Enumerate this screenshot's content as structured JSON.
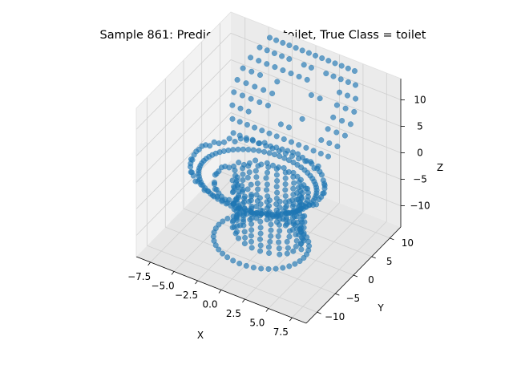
{
  "chart_data": {
    "type": "scatter",
    "projection": "3d",
    "title": "Sample 861: Predicted Class = toilet, True Class = toilet",
    "xlabel": "X",
    "ylabel": "Y",
    "zlabel": "Z",
    "xlim": [
      -9,
      9
    ],
    "ylim": [
      -13,
      13
    ],
    "zlim": [
      -14,
      14
    ],
    "xticks": [
      -7.5,
      -5.0,
      -2.5,
      0.0,
      2.5,
      5.0,
      7.5
    ],
    "xtick_labels": [
      "−7.5",
      "−5.0",
      "−2.5",
      "0.0",
      "2.5",
      "5.0",
      "7.5"
    ],
    "yticks": [
      -10,
      -5,
      0,
      5,
      10
    ],
    "ytick_labels": [
      "−10",
      "−5",
      "0",
      "5",
      "10"
    ],
    "zticks": [
      -10,
      -5,
      0,
      5,
      10
    ],
    "ztick_labels": [
      "−10",
      "−5",
      "0",
      "5",
      "10"
    ],
    "grid": true,
    "point_color": "#1f77b4",
    "series": [
      {
        "points_note": "toilet point cloud (x, y, z)",
        "bowl_rim": {
          "center": [
            0,
            -3,
            0
          ],
          "rx": 6.5,
          "ry": 7.5,
          "z": 0
        },
        "bowl_inner": {
          "center": [
            0,
            -2,
            -3
          ],
          "rx": 4.5,
          "ry": 5.5,
          "z": -3
        },
        "seat_lid": {
          "x_range": [
            -6,
            6
          ],
          "y_range": [
            2,
            12
          ],
          "z_range": [
            2,
            13
          ]
        },
        "pedestal": {
          "center": [
            0,
            0,
            -9
          ],
          "rx": 3.0,
          "ry": 3.5,
          "z_range": [
            -13,
            -3
          ]
        }
      }
    ]
  },
  "figure": {
    "background": "#ffffff",
    "pane_colors": [
      "#f2f2f2",
      "#e6e6e6",
      "#ebebeb"
    ]
  }
}
